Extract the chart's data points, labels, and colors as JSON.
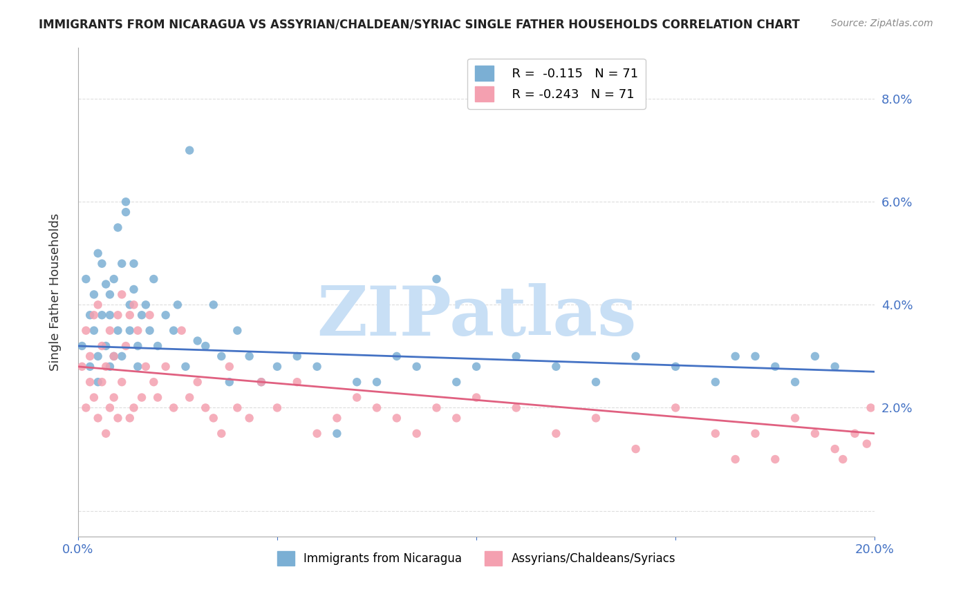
{
  "title": "IMMIGRANTS FROM NICARAGUA VS ASSYRIAN/CHALDEAN/SYRIAC SINGLE FATHER HOUSEHOLDS CORRELATION CHART",
  "source": "Source: ZipAtlas.com",
  "xlabel_blue": "Immigrants from Nicaragua",
  "xlabel_pink": "Assyrians/Chaldeans/Syriacs",
  "ylabel": "Single Father Households",
  "xlim": [
    0.0,
    0.2
  ],
  "ylim": [
    -0.005,
    0.09
  ],
  "yticks": [
    0.0,
    0.02,
    0.04,
    0.06,
    0.08
  ],
  "ytick_labels": [
    "",
    "2.0%",
    "4.0%",
    "6.0%",
    "8.0%"
  ],
  "xticks": [
    0.0,
    0.05,
    0.1,
    0.15,
    0.2
  ],
  "xtick_labels": [
    "0.0%",
    "",
    "",
    "",
    "20.0%"
  ],
  "blue_R": "-0.115",
  "blue_N": "71",
  "pink_R": "-0.243",
  "pink_N": "71",
  "blue_color": "#7bafd4",
  "pink_color": "#f4a0b0",
  "blue_line_color": "#4472c4",
  "pink_line_color": "#e06080",
  "watermark": "ZIPatlas",
  "watermark_color": "#c8dff5",
  "background_color": "#ffffff",
  "grid_color": "#dddddd",
  "title_color": "#222222",
  "axis_color": "#4472c4",
  "blue_scatter_x": [
    0.001,
    0.002,
    0.003,
    0.003,
    0.004,
    0.004,
    0.005,
    0.005,
    0.005,
    0.006,
    0.006,
    0.007,
    0.007,
    0.008,
    0.008,
    0.008,
    0.009,
    0.009,
    0.01,
    0.01,
    0.011,
    0.011,
    0.012,
    0.012,
    0.013,
    0.013,
    0.014,
    0.014,
    0.015,
    0.015,
    0.016,
    0.017,
    0.018,
    0.019,
    0.02,
    0.022,
    0.024,
    0.025,
    0.027,
    0.028,
    0.03,
    0.032,
    0.034,
    0.036,
    0.038,
    0.04,
    0.043,
    0.046,
    0.05,
    0.055,
    0.06,
    0.065,
    0.07,
    0.075,
    0.08,
    0.085,
    0.09,
    0.095,
    0.1,
    0.11,
    0.12,
    0.13,
    0.14,
    0.15,
    0.16,
    0.165,
    0.17,
    0.175,
    0.18,
    0.185,
    0.19
  ],
  "blue_scatter_y": [
    0.032,
    0.045,
    0.028,
    0.038,
    0.042,
    0.035,
    0.05,
    0.03,
    0.025,
    0.048,
    0.038,
    0.044,
    0.032,
    0.042,
    0.028,
    0.038,
    0.045,
    0.03,
    0.055,
    0.035,
    0.048,
    0.03,
    0.06,
    0.058,
    0.04,
    0.035,
    0.043,
    0.048,
    0.032,
    0.028,
    0.038,
    0.04,
    0.035,
    0.045,
    0.032,
    0.038,
    0.035,
    0.04,
    0.028,
    0.07,
    0.033,
    0.032,
    0.04,
    0.03,
    0.025,
    0.035,
    0.03,
    0.025,
    0.028,
    0.03,
    0.028,
    0.015,
    0.025,
    0.025,
    0.03,
    0.028,
    0.045,
    0.025,
    0.028,
    0.03,
    0.028,
    0.025,
    0.03,
    0.028,
    0.025,
    0.03,
    0.03,
    0.028,
    0.025,
    0.03,
    0.028
  ],
  "pink_scatter_x": [
    0.001,
    0.002,
    0.002,
    0.003,
    0.003,
    0.004,
    0.004,
    0.005,
    0.005,
    0.006,
    0.006,
    0.007,
    0.007,
    0.008,
    0.008,
    0.009,
    0.009,
    0.01,
    0.01,
    0.011,
    0.011,
    0.012,
    0.013,
    0.013,
    0.014,
    0.014,
    0.015,
    0.016,
    0.017,
    0.018,
    0.019,
    0.02,
    0.022,
    0.024,
    0.026,
    0.028,
    0.03,
    0.032,
    0.034,
    0.036,
    0.038,
    0.04,
    0.043,
    0.046,
    0.05,
    0.055,
    0.06,
    0.065,
    0.07,
    0.075,
    0.08,
    0.085,
    0.09,
    0.095,
    0.1,
    0.11,
    0.12,
    0.13,
    0.14,
    0.15,
    0.16,
    0.165,
    0.17,
    0.175,
    0.18,
    0.185,
    0.19,
    0.192,
    0.195,
    0.198,
    0.199
  ],
  "pink_scatter_y": [
    0.028,
    0.035,
    0.02,
    0.03,
    0.025,
    0.038,
    0.022,
    0.04,
    0.018,
    0.032,
    0.025,
    0.028,
    0.015,
    0.035,
    0.02,
    0.03,
    0.022,
    0.038,
    0.018,
    0.042,
    0.025,
    0.032,
    0.038,
    0.018,
    0.02,
    0.04,
    0.035,
    0.022,
    0.028,
    0.038,
    0.025,
    0.022,
    0.028,
    0.02,
    0.035,
    0.022,
    0.025,
    0.02,
    0.018,
    0.015,
    0.028,
    0.02,
    0.018,
    0.025,
    0.02,
    0.025,
    0.015,
    0.018,
    0.022,
    0.02,
    0.018,
    0.015,
    0.02,
    0.018,
    0.022,
    0.02,
    0.015,
    0.018,
    0.012,
    0.02,
    0.015,
    0.01,
    0.015,
    0.01,
    0.018,
    0.015,
    0.012,
    0.01,
    0.015,
    0.013,
    0.02
  ],
  "blue_trend_start_x": 0.0,
  "blue_trend_end_x": 0.2,
  "blue_trend_start_y": 0.032,
  "blue_trend_end_y": 0.027,
  "pink_trend_start_x": 0.0,
  "pink_trend_end_x": 0.2,
  "pink_trend_start_y": 0.028,
  "pink_trend_end_y": 0.015
}
